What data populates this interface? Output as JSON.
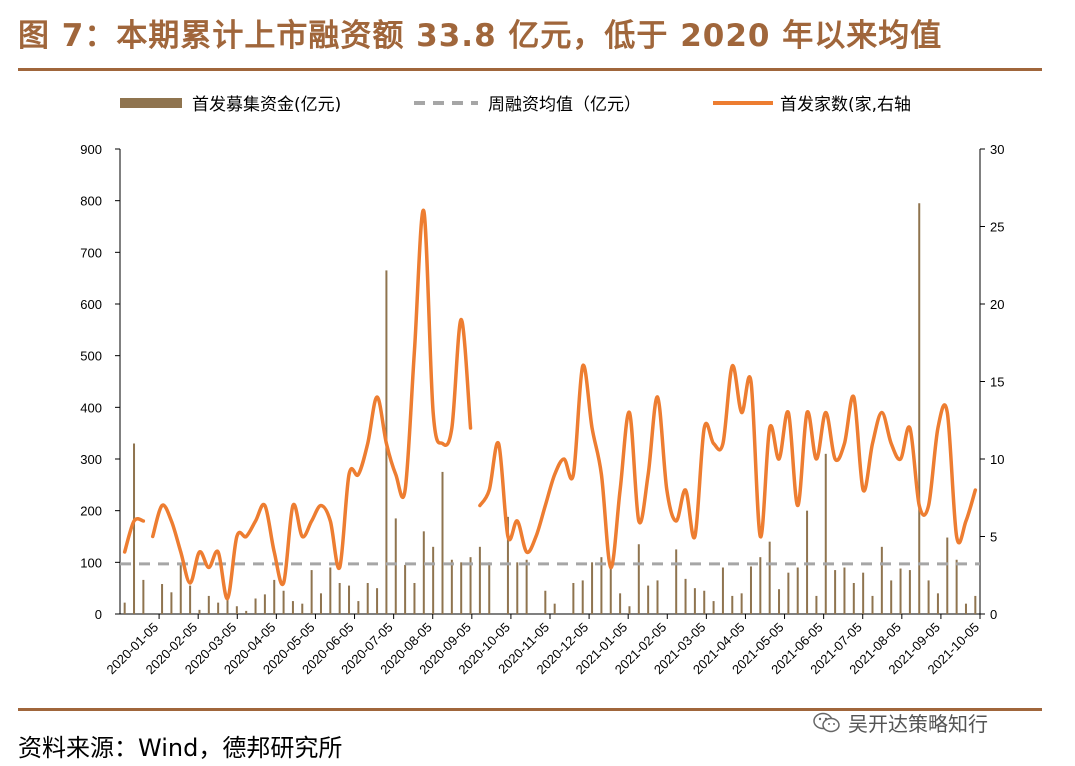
{
  "header": {
    "title": "图 7：本期累计上市融资额 33.8 亿元，低于 2020 年以来均值"
  },
  "footer": {
    "source": "资料来源：Wind，德邦研究所",
    "watermark": "吴开达策略知行"
  },
  "colors": {
    "bars": "#8f744f",
    "line": "#ed7d31",
    "mean": "#a6a6a6",
    "accent": "#a0663b"
  },
  "chart_data": {
    "type": "bar+line",
    "legend": [
      {
        "name": "首发募集资金(亿元)",
        "kind": "bar"
      },
      {
        "name": "周融资均值（亿元）",
        "kind": "dashed-line"
      },
      {
        "name": "首发家数(家,右轴",
        "kind": "line"
      }
    ],
    "legend_placement": "top",
    "x_ticks": [
      "2020-01-05",
      "2020-02-05",
      "2020-03-05",
      "2020-04-05",
      "2020-05-05",
      "2020-06-05",
      "2020-07-05",
      "2020-08-05",
      "2020-09-05",
      "2020-10-05",
      "2020-11-05",
      "2020-12-05",
      "2021-01-05",
      "2021-02-05",
      "2021-03-05",
      "2021-04-05",
      "2021-05-05",
      "2021-06-05",
      "2021-07-05",
      "2021-08-05",
      "2021-09-05",
      "2021-10-05"
    ],
    "y_left": {
      "min": 0,
      "max": 900,
      "ticks": [
        0,
        100,
        200,
        300,
        400,
        500,
        600,
        700,
        800,
        900
      ]
    },
    "y_right": {
      "min": 0,
      "max": 30,
      "ticks": [
        0,
        5,
        10,
        15,
        20,
        25,
        30
      ]
    },
    "mean_value": 97,
    "series": [
      {
        "name": "首发募集资金(亿元)",
        "axis": "left",
        "type": "bar",
        "values": [
          22,
          330,
          66,
          0,
          58,
          42,
          98,
          55,
          8,
          35,
          22,
          35,
          15,
          6,
          30,
          38,
          66,
          45,
          25,
          20,
          85,
          40,
          90,
          60,
          55,
          25,
          60,
          50,
          665,
          185,
          95,
          60,
          160,
          130,
          275,
          105,
          100,
          110,
          130,
          100,
          0,
          188,
          100,
          105,
          0,
          45,
          20,
          0,
          60,
          65,
          100,
          110,
          90,
          40,
          15,
          135,
          55,
          65,
          0,
          125,
          68,
          50,
          45,
          25,
          90,
          35,
          40,
          92,
          110,
          140,
          48,
          80,
          90,
          200,
          35,
          310,
          85,
          90,
          60,
          80,
          35,
          130,
          65,
          88,
          85,
          795,
          65,
          40,
          148,
          105,
          20,
          35
        ]
      },
      {
        "name": "首发家数(家,右轴",
        "axis": "right",
        "type": "line",
        "segments": [
          [
            4,
            6,
            6
          ],
          [
            5,
            7,
            6,
            4,
            2,
            4,
            3,
            4,
            1,
            5,
            5,
            6,
            7,
            4,
            2,
            7,
            5,
            6,
            7,
            6,
            3,
            9,
            9,
            11,
            14,
            11,
            9,
            8,
            17,
            26,
            13,
            11,
            12,
            19,
            12
          ],
          [
            7,
            8,
            11,
            5,
            6,
            4,
            5,
            7,
            9,
            10,
            9,
            16,
            12,
            9,
            3,
            8,
            13,
            6,
            9,
            14,
            8,
            6,
            8,
            5,
            12,
            11,
            11,
            16,
            13,
            15,
            5,
            12,
            10,
            13,
            7,
            13,
            10,
            13,
            10,
            11,
            14,
            8,
            11,
            13,
            11,
            10,
            12,
            7,
            7,
            12,
            13,
            5,
            6,
            8
          ]
        ]
      }
    ]
  }
}
